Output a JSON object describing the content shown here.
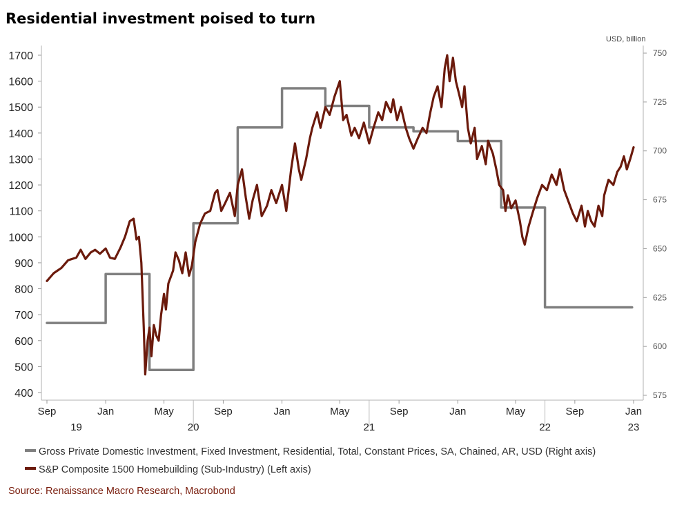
{
  "chart_data": {
    "type": "line",
    "title": "Residential investment poised to turn",
    "right_axis_unit": "USD, billion",
    "source": "Source: Renaissance Macro Research, Macrobond",
    "left_axis": {
      "min": 400,
      "max": 1700,
      "ticks": [
        "400",
        "500",
        "600",
        "700",
        "800",
        "900",
        "1000",
        "1100",
        "1200",
        "1300",
        "1400",
        "1500",
        "1600",
        "1700"
      ]
    },
    "right_axis": {
      "min": 575,
      "max": 750,
      "ticks": [
        "575",
        "600",
        "625",
        "650",
        "675",
        "700",
        "725",
        "750"
      ]
    },
    "x_axis": {
      "start": "2019-09-01",
      "end": "2023-01-01",
      "month_ticks": [
        {
          "date": "2019-09-01",
          "label": "Sep"
        },
        {
          "date": "2020-01-01",
          "label": "Jan"
        },
        {
          "date": "2020-05-01",
          "label": "May"
        },
        {
          "date": "2020-09-01",
          "label": "Sep"
        },
        {
          "date": "2021-01-01",
          "label": "Jan"
        },
        {
          "date": "2021-05-01",
          "label": "May"
        },
        {
          "date": "2021-09-01",
          "label": "Sep"
        },
        {
          "date": "2022-01-01",
          "label": "Jan"
        },
        {
          "date": "2022-05-01",
          "label": "May"
        },
        {
          "date": "2022-09-01",
          "label": "Sep"
        },
        {
          "date": "2023-01-01",
          "label": "Jan"
        }
      ],
      "year_labels": [
        {
          "date": "2019-11-01",
          "label": "19"
        },
        {
          "date": "2020-07-01",
          "label": "20"
        },
        {
          "date": "2021-07-01",
          "label": "21"
        },
        {
          "date": "2022-07-01",
          "label": "22"
        },
        {
          "date": "2023-01-01",
          "label": "23"
        }
      ],
      "separators": [
        "2020-07-01",
        "2021-07-01",
        "2022-07-01"
      ]
    },
    "series": [
      {
        "name": "Gross Private Domestic Investment, Fixed Investment, Residential, Total, Constant Prices, SA, Chained, AR, USD (Right axis)",
        "axis": "right",
        "color": "#7f7f7f",
        "step": true,
        "points": [
          [
            "2019-09-01",
            612
          ],
          [
            "2020-01-01",
            637
          ],
          [
            "2020-04-01",
            588
          ],
          [
            "2020-07-01",
            663
          ],
          [
            "2020-10-01",
            712
          ],
          [
            "2021-01-01",
            732
          ],
          [
            "2021-04-01",
            723
          ],
          [
            "2021-07-01",
            712
          ],
          [
            "2021-10-01",
            710
          ],
          [
            "2022-01-01",
            705
          ],
          [
            "2022-04-01",
            671
          ],
          [
            "2022-07-01",
            620
          ],
          [
            "2022-10-01",
            620
          ]
        ]
      },
      {
        "name": "S&P Composite 1500 Homebuilding (Sub-Industry) (Left axis)",
        "axis": "left",
        "color": "#6b1a0c",
        "step": false,
        "points": [
          [
            "2019-09-01",
            830
          ],
          [
            "2019-09-15",
            860
          ],
          [
            "2019-10-01",
            880
          ],
          [
            "2019-10-15",
            910
          ],
          [
            "2019-11-01",
            920
          ],
          [
            "2019-11-10",
            950
          ],
          [
            "2019-11-20",
            915
          ],
          [
            "2019-12-01",
            940
          ],
          [
            "2019-12-10",
            950
          ],
          [
            "2019-12-20",
            935
          ],
          [
            "2020-01-01",
            955
          ],
          [
            "2020-01-10",
            920
          ],
          [
            "2020-01-20",
            915
          ],
          [
            "2020-02-01",
            960
          ],
          [
            "2020-02-10",
            1000
          ],
          [
            "2020-02-20",
            1060
          ],
          [
            "2020-02-28",
            1070
          ],
          [
            "2020-03-05",
            990
          ],
          [
            "2020-03-10",
            1000
          ],
          [
            "2020-03-15",
            900
          ],
          [
            "2020-03-20",
            650
          ],
          [
            "2020-03-23",
            470
          ],
          [
            "2020-03-28",
            600
          ],
          [
            "2020-04-01",
            650
          ],
          [
            "2020-04-05",
            540
          ],
          [
            "2020-04-10",
            660
          ],
          [
            "2020-04-15",
            620
          ],
          [
            "2020-04-20",
            600
          ],
          [
            "2020-04-25",
            700
          ],
          [
            "2020-05-01",
            780
          ],
          [
            "2020-05-05",
            720
          ],
          [
            "2020-05-10",
            820
          ],
          [
            "2020-05-20",
            870
          ],
          [
            "2020-05-25",
            940
          ],
          [
            "2020-06-01",
            910
          ],
          [
            "2020-06-08",
            860
          ],
          [
            "2020-06-15",
            940
          ],
          [
            "2020-06-22",
            850
          ],
          [
            "2020-06-28",
            890
          ],
          [
            "2020-07-05",
            980
          ],
          [
            "2020-07-15",
            1050
          ],
          [
            "2020-07-25",
            1090
          ],
          [
            "2020-08-05",
            1100
          ],
          [
            "2020-08-15",
            1170
          ],
          [
            "2020-08-20",
            1180
          ],
          [
            "2020-08-28",
            1100
          ],
          [
            "2020-09-05",
            1130
          ],
          [
            "2020-09-15",
            1170
          ],
          [
            "2020-09-25",
            1080
          ],
          [
            "2020-10-01",
            1200
          ],
          [
            "2020-10-10",
            1260
          ],
          [
            "2020-10-18",
            1150
          ],
          [
            "2020-10-25",
            1070
          ],
          [
            "2020-11-01",
            1140
          ],
          [
            "2020-11-10",
            1200
          ],
          [
            "2020-11-20",
            1080
          ],
          [
            "2020-12-01",
            1120
          ],
          [
            "2020-12-10",
            1180
          ],
          [
            "2020-12-20",
            1130
          ],
          [
            "2021-01-01",
            1200
          ],
          [
            "2021-01-10",
            1100
          ],
          [
            "2021-01-20",
            1260
          ],
          [
            "2021-01-28",
            1360
          ],
          [
            "2021-02-05",
            1260
          ],
          [
            "2021-02-10",
            1220
          ],
          [
            "2021-02-20",
            1300
          ],
          [
            "2021-02-28",
            1380
          ],
          [
            "2021-03-05",
            1420
          ],
          [
            "2021-03-15",
            1480
          ],
          [
            "2021-03-22",
            1420
          ],
          [
            "2021-04-01",
            1500
          ],
          [
            "2021-04-10",
            1470
          ],
          [
            "2021-04-20",
            1540
          ],
          [
            "2021-05-01",
            1600
          ],
          [
            "2021-05-08",
            1450
          ],
          [
            "2021-05-15",
            1470
          ],
          [
            "2021-05-25",
            1390
          ],
          [
            "2021-06-01",
            1420
          ],
          [
            "2021-06-10",
            1380
          ],
          [
            "2021-06-20",
            1440
          ],
          [
            "2021-07-01",
            1360
          ],
          [
            "2021-07-10",
            1420
          ],
          [
            "2021-07-20",
            1480
          ],
          [
            "2021-07-28",
            1450
          ],
          [
            "2021-08-05",
            1520
          ],
          [
            "2021-08-15",
            1480
          ],
          [
            "2021-08-20",
            1530
          ],
          [
            "2021-08-28",
            1450
          ],
          [
            "2021-09-05",
            1500
          ],
          [
            "2021-09-15",
            1420
          ],
          [
            "2021-09-22",
            1380
          ],
          [
            "2021-10-01",
            1340
          ],
          [
            "2021-10-10",
            1380
          ],
          [
            "2021-10-20",
            1420
          ],
          [
            "2021-10-28",
            1400
          ],
          [
            "2021-11-05",
            1480
          ],
          [
            "2021-11-12",
            1540
          ],
          [
            "2021-11-20",
            1580
          ],
          [
            "2021-11-28",
            1500
          ],
          [
            "2021-12-05",
            1650
          ],
          [
            "2021-12-10",
            1700
          ],
          [
            "2021-12-15",
            1600
          ],
          [
            "2021-12-22",
            1690
          ],
          [
            "2021-12-28",
            1600
          ],
          [
            "2022-01-05",
            1540
          ],
          [
            "2022-01-10",
            1500
          ],
          [
            "2022-01-15",
            1580
          ],
          [
            "2022-01-22",
            1420
          ],
          [
            "2022-01-28",
            1360
          ],
          [
            "2022-02-05",
            1420
          ],
          [
            "2022-02-10",
            1300
          ],
          [
            "2022-02-20",
            1350
          ],
          [
            "2022-02-28",
            1280
          ],
          [
            "2022-03-05",
            1370
          ],
          [
            "2022-03-15",
            1320
          ],
          [
            "2022-03-22",
            1260
          ],
          [
            "2022-03-28",
            1200
          ],
          [
            "2022-04-05",
            1180
          ],
          [
            "2022-04-10",
            1100
          ],
          [
            "2022-04-15",
            1160
          ],
          [
            "2022-04-22",
            1110
          ],
          [
            "2022-05-01",
            1140
          ],
          [
            "2022-05-10",
            1060
          ],
          [
            "2022-05-15",
            1000
          ],
          [
            "2022-05-20",
            970
          ],
          [
            "2022-05-28",
            1040
          ],
          [
            "2022-06-05",
            1090
          ],
          [
            "2022-06-15",
            1150
          ],
          [
            "2022-06-25",
            1200
          ],
          [
            "2022-07-05",
            1180
          ],
          [
            "2022-07-15",
            1240
          ],
          [
            "2022-07-25",
            1200
          ],
          [
            "2022-08-01",
            1260
          ],
          [
            "2022-08-10",
            1180
          ],
          [
            "2022-08-20",
            1130
          ],
          [
            "2022-08-28",
            1090
          ],
          [
            "2022-09-05",
            1060
          ],
          [
            "2022-09-15",
            1120
          ],
          [
            "2022-09-22",
            1040
          ],
          [
            "2022-09-28",
            1100
          ],
          [
            "2022-10-05",
            1060
          ],
          [
            "2022-10-12",
            1040
          ],
          [
            "2022-10-20",
            1120
          ],
          [
            "2022-10-28",
            1080
          ],
          [
            "2022-11-01",
            1160
          ],
          [
            "2022-11-10",
            1220
          ],
          [
            "2022-11-20",
            1200
          ],
          [
            "2022-11-28",
            1250
          ],
          [
            "2022-12-05",
            1270
          ],
          [
            "2022-12-12",
            1310
          ],
          [
            "2022-12-18",
            1260
          ],
          [
            "2022-12-25",
            1300
          ],
          [
            "2023-01-01",
            1345
          ]
        ]
      }
    ]
  }
}
